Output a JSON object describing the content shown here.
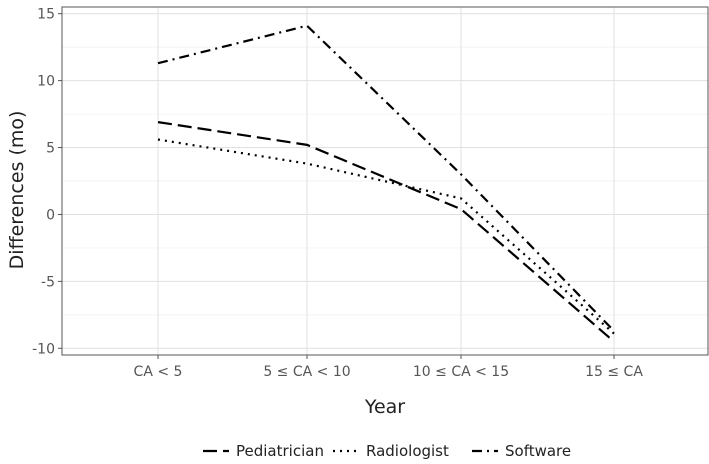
{
  "chart_data": {
    "type": "line",
    "categories": [
      "CA < 5",
      "5 ≤ CA < 10",
      "10 ≤ CA < 15",
      "15 ≤ CA"
    ],
    "series": [
      {
        "name": "Pediatrician",
        "values": [
          6.9,
          5.2,
          0.4,
          -9.5
        ],
        "dash": "long-dash"
      },
      {
        "name": "Radiologist",
        "values": [
          5.6,
          3.8,
          1.2,
          -8.9
        ],
        "dash": "dotted"
      },
      {
        "name": "Software",
        "values": [
          11.3,
          14.1,
          3.0,
          -8.7
        ],
        "dash": "dash-dot"
      }
    ],
    "xlabel": "Year",
    "ylabel": "Differences (mo)",
    "ylim": [
      -10.5,
      15.5
    ],
    "yticks": [
      -10,
      -5,
      0,
      5,
      10,
      15
    ],
    "ytick_labels": [
      "-10",
      "-5",
      "0",
      "5",
      "10",
      "15"
    ],
    "grid": true,
    "legend_position": "bottom",
    "colors": {
      "line": "#000000",
      "grid": "#e0e0e0",
      "panel_border": "#555555"
    }
  }
}
